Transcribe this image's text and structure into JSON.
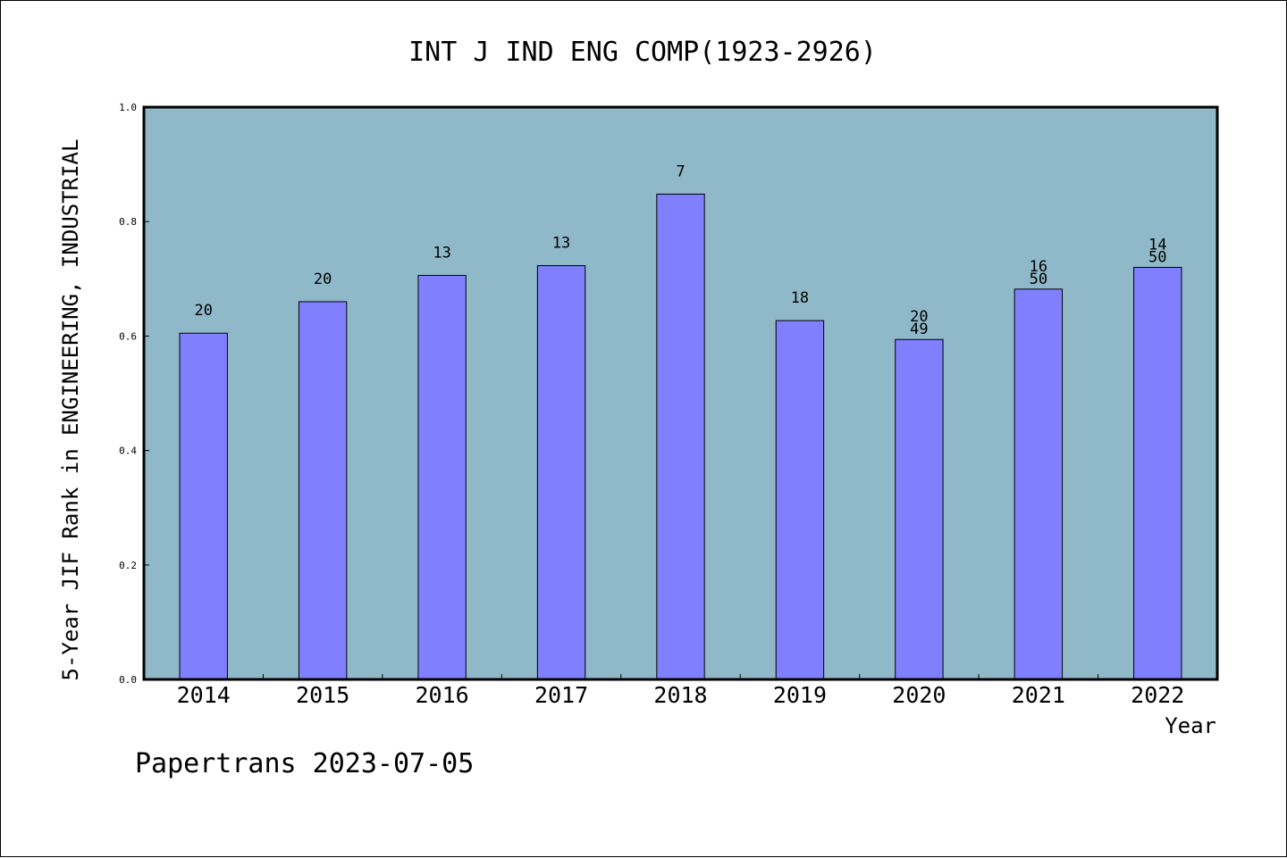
{
  "chart_data": {
    "type": "bar",
    "title": "INT J IND ENG COMP(1923-2926)",
    "xlabel": "Year",
    "ylabel": "5-Year JIF Rank in ENGINEERING, INDUSTRIAL",
    "categories": [
      "2014",
      "2015",
      "2016",
      "2017",
      "2018",
      "2019",
      "2020",
      "2021",
      "2022"
    ],
    "values": [
      0.605,
      0.66,
      0.706,
      0.723,
      0.848,
      0.627,
      0.594,
      0.682,
      0.72
    ],
    "bar_labels": [
      [
        "20"
      ],
      [
        "20"
      ],
      [
        "13"
      ],
      [
        "13"
      ],
      [
        "7"
      ],
      [
        "18"
      ],
      [
        "20",
        "49"
      ],
      [
        "16",
        "50"
      ],
      [
        "14",
        "50"
      ]
    ],
    "ylim": [
      0,
      1.0
    ],
    "yticks": [
      "0.0",
      "0.2",
      "0.4",
      "0.6",
      "0.8",
      "1.0"
    ],
    "grid": false,
    "colors": {
      "bar": "#8080ff",
      "plot_background": "#8fb8c8",
      "axis": "#000000"
    }
  },
  "footer": {
    "watermark": "Papertrans 2023-07-05"
  }
}
